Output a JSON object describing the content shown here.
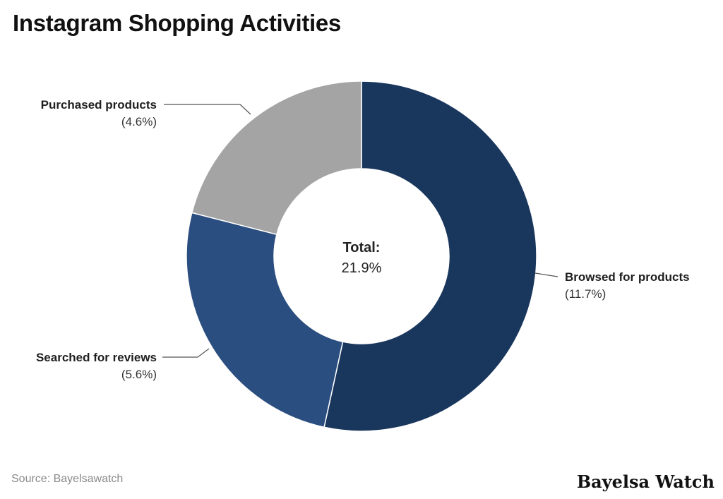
{
  "chart_data": {
    "type": "pie",
    "title": "Instagram Shopping Activities",
    "unit": "%",
    "series": [
      {
        "name": "Browsed for products",
        "value": 11.7,
        "display": "(11.7%)",
        "color": "#19365c"
      },
      {
        "name": "Searched for reviews",
        "value": 5.6,
        "display": "(5.6%)",
        "color": "#2b4e80"
      },
      {
        "name": "Purchased products",
        "value": 4.6,
        "display": "(4.6%)",
        "color": "#a4a4a4"
      }
    ],
    "center": {
      "label": "Total:",
      "value": "21.9%"
    }
  },
  "footer": {
    "source": "Source: Bayelsawatch",
    "brand": "Bayelsa Watch"
  }
}
